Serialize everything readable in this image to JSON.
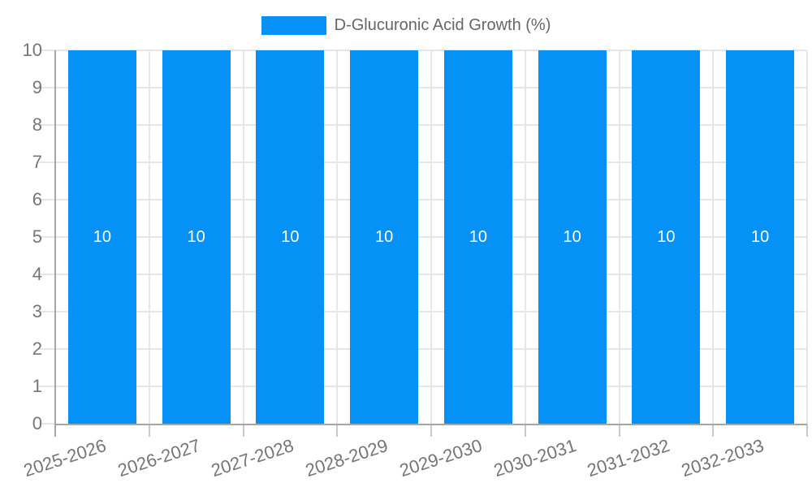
{
  "chart_data": {
    "type": "bar",
    "legend": {
      "label": "D-Glucuronic Acid Growth (%)",
      "position": "top"
    },
    "categories": [
      "2025-2026",
      "2026-2027",
      "2027-2028",
      "2028-2029",
      "2029-2030",
      "2030-2031",
      "2031-2032",
      "2032-2033"
    ],
    "values": [
      10,
      10,
      10,
      10,
      10,
      10,
      10,
      10
    ],
    "data_labels": [
      "10",
      "10",
      "10",
      "10",
      "10",
      "10",
      "10",
      "10"
    ],
    "ylim": [
      0,
      10
    ],
    "y_ticks": [
      0,
      1,
      2,
      3,
      4,
      5,
      6,
      7,
      8,
      9,
      10
    ],
    "grid": true,
    "colors": {
      "bar": "#0591f5",
      "bar_label": "#ffffff",
      "grid_line": "#e6e6e6",
      "axis_line": "#a6a6a6",
      "x_tick": "#c9c9c9",
      "tick_label": "#757575",
      "legend_label": "#666666",
      "background": "#ffffff"
    }
  }
}
